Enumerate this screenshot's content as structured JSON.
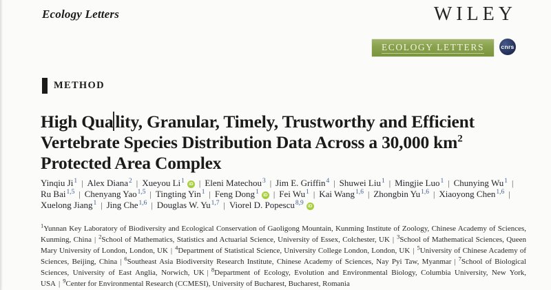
{
  "header": {
    "journal_name": "Ecology Letters",
    "publisher_logo": "WILEY",
    "banner_text": "ECOLOGY LETTERS",
    "cnrs_logo_text": "cnrs",
    "banner_color": "#88a14c",
    "cnrs_color": "#243058",
    "orcid_color": "#a6ce39"
  },
  "section": {
    "label": "METHOD"
  },
  "title": {
    "line1_before_caret": "High Qua",
    "line1_after_caret": "lity, Granular, Timely, Trustworthy and Efficient",
    "line2": "Vertebrate Species Distribution Data Across a 30,000 km",
    "line2_superscript": "2",
    "line3": "Protected Area Complex"
  },
  "authors": {
    "separator": "|",
    "orcid_icon_label": "iD",
    "list": [
      {
        "name": "Yinqiu Ji",
        "sup": "1",
        "orcid": false
      },
      {
        "name": "Alex Diana",
        "sup": "2",
        "orcid": false
      },
      {
        "name": "Xueyou Li",
        "sup": "1",
        "orcid": true
      },
      {
        "name": "Eleni Matechou",
        "sup": "3",
        "orcid": false
      },
      {
        "name": "Jim E. Griffin",
        "sup": "4",
        "orcid": false
      },
      {
        "name": "Shuwei Liu",
        "sup": "1",
        "orcid": false
      },
      {
        "name": "Mingjie Luo",
        "sup": "1",
        "orcid": false
      },
      {
        "name": "Chunying Wu",
        "sup": "1",
        "orcid": false
      },
      {
        "name": "Ru Bai",
        "sup": "1,5",
        "orcid": false
      },
      {
        "name": "Chenyang Yao",
        "sup": "1,5",
        "orcid": false
      },
      {
        "name": "Tingting Yin",
        "sup": "1",
        "orcid": false
      },
      {
        "name": "Feng Dong",
        "sup": "1",
        "orcid": true
      },
      {
        "name": "Fei Wu",
        "sup": "1",
        "orcid": false
      },
      {
        "name": "Kai Wang",
        "sup": "1,6",
        "orcid": false
      },
      {
        "name": "Zhongbin Yu",
        "sup": "1,6",
        "orcid": false
      },
      {
        "name": "Xiaoyong Chen",
        "sup": "1,6",
        "orcid": false
      },
      {
        "name": "Xuelong Jiang",
        "sup": "1",
        "orcid": false
      },
      {
        "name": "Jing Che",
        "sup": "1,6",
        "orcid": false
      },
      {
        "name": "Douglas W. Yu",
        "sup": "1,7",
        "orcid": false
      },
      {
        "name": "Viorel D. Popescu",
        "sup": "8,9",
        "orcid": true
      }
    ]
  },
  "affiliations": {
    "separator": "|",
    "list": [
      {
        "sup": "1",
        "text": "Yunnan Key Laboratory of Biodiversity and Ecological Conservation of Gaoligong Mountain, Kunming Institute of Zoology, Chinese Academy of Sciences, Kunming, China"
      },
      {
        "sup": "2",
        "text": "School of Mathematics, Statistics and Actuarial Science, University of Essex, Colchester, UK"
      },
      {
        "sup": "3",
        "text": "School of Mathematical Sciences, Queen Mary University of London, London, UK"
      },
      {
        "sup": "4",
        "text": "Department of Statistical Science, University College London, London, UK"
      },
      {
        "sup": "5",
        "text": "University of Chinese Academy of Sciences, Beijing, China"
      },
      {
        "sup": "6",
        "text": "Southeast Asia Biodiversity Research Institute, Chinese Academy of Sciences, Nay Pyi Taw, Myanmar"
      },
      {
        "sup": "7",
        "text": "School of Biological Sciences, University of East Anglia, Norwich, UK"
      },
      {
        "sup": "8",
        "text": "Department of Ecology, Evolution and Environmental Biology, Columbia University, New York, USA"
      },
      {
        "sup": "9",
        "text": "Center for Environmental Research (CCMESI), University of Bucharest, Bucharest, Romania"
      }
    ]
  }
}
